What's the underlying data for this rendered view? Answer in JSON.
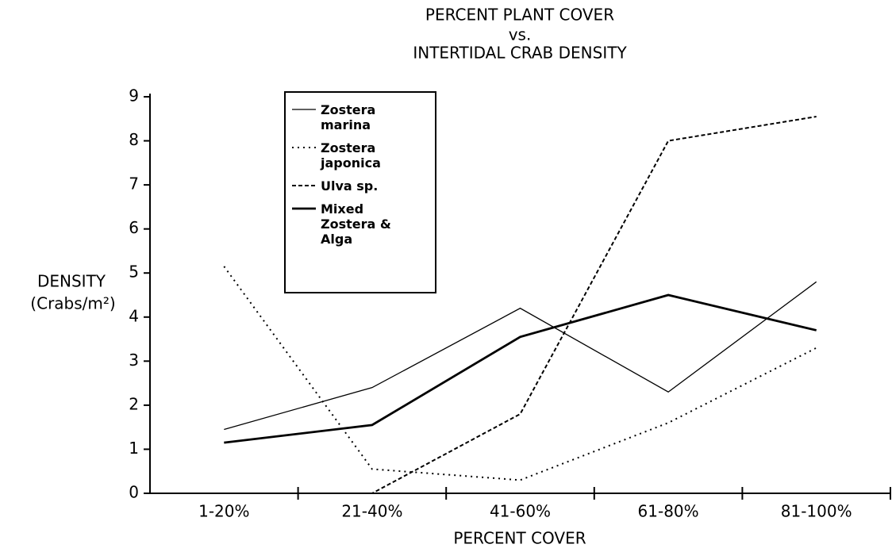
{
  "chart_data": {
    "type": "line",
    "title": [
      "PERCENT PLANT COVER",
      "vs.",
      "INTERTIDAL CRAB DENSITY"
    ],
    "ylabel": [
      "DENSITY",
      "(Crabs/m²)"
    ],
    "xlabel": "PERCENT COVER",
    "categories": [
      "1-20%",
      "21-40%",
      "41-60%",
      "61-80%",
      "81-100%"
    ],
    "ylim": [
      0,
      9
    ],
    "yticks": [
      0,
      1,
      2,
      3,
      4,
      5,
      6,
      7,
      8,
      9
    ],
    "series": [
      {
        "name": "Zostera marina",
        "color": "#000000",
        "style": "solid",
        "values": [
          1.45,
          2.4,
          4.2,
          2.3,
          4.8
        ]
      },
      {
        "name": "Zostera japonica",
        "color": "#000000",
        "style": "dotted",
        "values": [
          5.15,
          0.55,
          0.3,
          1.6,
          3.3
        ]
      },
      {
        "name": "Ulva sp.",
        "color": "#000000",
        "style": "dashed",
        "values": [
          0,
          0,
          1.8,
          8.0,
          8.55
        ]
      },
      {
        "name": "Mixed Zostera & Alga",
        "color": "#000000",
        "style": "thick",
        "values": [
          1.15,
          1.55,
          3.55,
          4.5,
          3.7
        ]
      }
    ]
  }
}
